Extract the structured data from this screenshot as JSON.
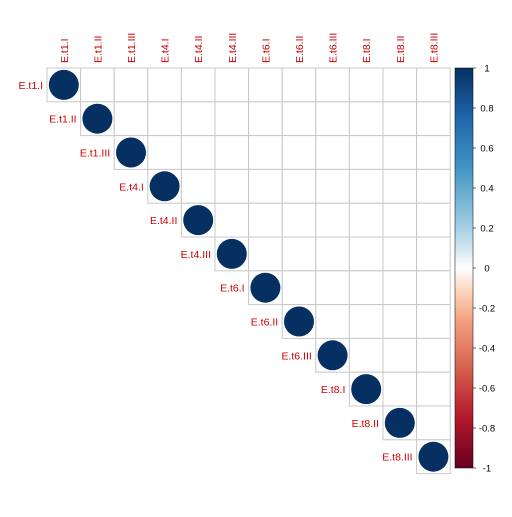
{
  "chart_data": {
    "type": "heatmap",
    "style": "corrplot-upper-circles",
    "title": "",
    "row_labels": [
      "E.t1.I",
      "E.t1.II",
      "E.t1.III",
      "E.t4.I",
      "E.t4.II",
      "E.t4.III",
      "E.t6.I",
      "E.t6.II",
      "E.t6.III",
      "E.t8.I",
      "E.t8.II",
      "E.t8.III"
    ],
    "col_labels": [
      "E.t1.I",
      "E.t1.II",
      "E.t1.III",
      "E.t4.I",
      "E.t4.II",
      "E.t4.III",
      "E.t6.I",
      "E.t6.II",
      "E.t6.III",
      "E.t8.I",
      "E.t8.II",
      "E.t8.III"
    ],
    "matrix": [
      [
        1,
        null,
        null,
        null,
        null,
        null,
        null,
        null,
        null,
        null,
        null,
        null
      ],
      [
        null,
        1,
        null,
        null,
        null,
        null,
        null,
        null,
        null,
        null,
        null,
        null
      ],
      [
        null,
        null,
        1,
        null,
        null,
        null,
        null,
        null,
        null,
        null,
        null,
        null
      ],
      [
        null,
        null,
        null,
        1,
        null,
        null,
        null,
        null,
        null,
        null,
        null,
        null
      ],
      [
        null,
        null,
        null,
        null,
        1,
        null,
        null,
        null,
        null,
        null,
        null,
        null
      ],
      [
        null,
        null,
        null,
        null,
        null,
        1,
        null,
        null,
        null,
        null,
        null,
        null
      ],
      [
        null,
        null,
        null,
        null,
        null,
        null,
        1,
        null,
        null,
        null,
        null,
        null
      ],
      [
        null,
        null,
        null,
        null,
        null,
        null,
        null,
        1,
        null,
        null,
        null,
        null
      ],
      [
        null,
        null,
        null,
        null,
        null,
        null,
        null,
        null,
        1,
        null,
        null,
        null
      ],
      [
        null,
        null,
        null,
        null,
        null,
        null,
        null,
        null,
        null,
        1,
        null,
        null
      ],
      [
        null,
        null,
        null,
        null,
        null,
        null,
        null,
        null,
        null,
        null,
        1,
        null
      ],
      [
        null,
        null,
        null,
        null,
        null,
        null,
        null,
        null,
        null,
        null,
        null,
        1
      ]
    ],
    "scale": {
      "min": -1,
      "max": 1,
      "tick_labels": [
        "1",
        "0.8",
        "0.6",
        "0.4",
        "0.2",
        "0",
        "-0.2",
        "-0.4",
        "-0.6",
        "-0.8",
        "-1"
      ],
      "tick_values": [
        1,
        0.8,
        0.6,
        0.4,
        0.2,
        0,
        -0.2,
        -0.4,
        -0.6,
        -0.8,
        -1
      ],
      "color_stops": [
        {
          "value": -1,
          "color": "#67001F"
        },
        {
          "value": -0.75,
          "color": "#B2182B"
        },
        {
          "value": -0.5,
          "color": "#D6604D"
        },
        {
          "value": -0.25,
          "color": "#F4A582"
        },
        {
          "value": -0.1,
          "color": "#FDDBC7"
        },
        {
          "value": 0,
          "color": "#FFFFFF"
        },
        {
          "value": 0.1,
          "color": "#D1E5F0"
        },
        {
          "value": 0.25,
          "color": "#92C5DE"
        },
        {
          "value": 0.5,
          "color": "#4393C3"
        },
        {
          "value": 0.75,
          "color": "#2166AC"
        },
        {
          "value": 1,
          "color": "#053061"
        }
      ]
    },
    "label_color": "#CC0000",
    "grid_color": "#C8C8C8",
    "circle_color": "#053061",
    "legend_position": "right",
    "grid": true
  }
}
